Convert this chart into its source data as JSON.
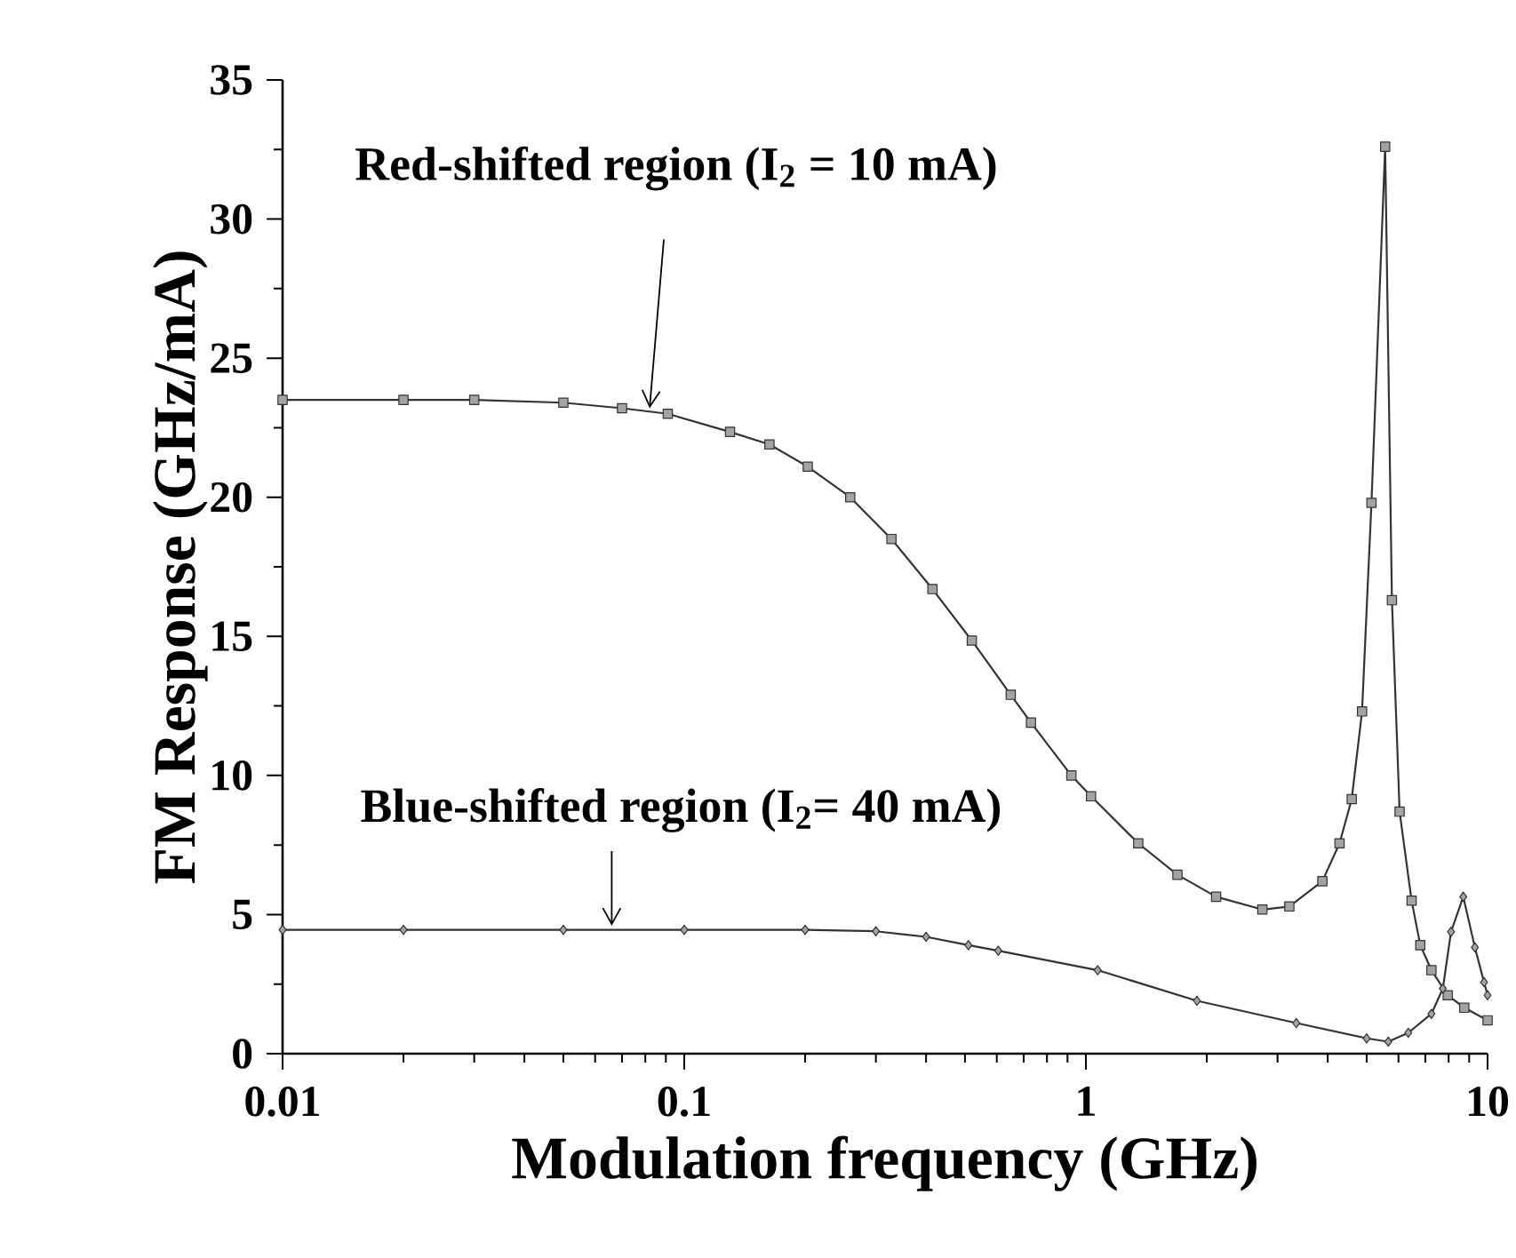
{
  "chart_data": {
    "type": "line",
    "xlabel": "Modulation frequency  (GHz)",
    "ylabel": "FM Response    (GHz/mA)",
    "log": "x",
    "xlim": [
      0.01,
      10
    ],
    "xticks": [
      0.01,
      0.1,
      1,
      10
    ],
    "ylim": [
      0,
      35
    ],
    "yticks": [
      0,
      5,
      10,
      15,
      20,
      25,
      30,
      35
    ],
    "grid": false,
    "line_style": "solid",
    "series": [
      {
        "color": "#333333",
        "marker": "square",
        "x": [
          0.01,
          0.02,
          0.03,
          0.05,
          0.07,
          0.091,
          0.13,
          0.163,
          0.203,
          0.259,
          0.328,
          0.415,
          0.52,
          0.65,
          0.73,
          0.92,
          1.03,
          1.35,
          1.69,
          2.11,
          2.75,
          3.21,
          3.88,
          4.28,
          4.59,
          4.87,
          5.14,
          5.56,
          5.78,
          6.04,
          6.47,
          6.8,
          7.25,
          7.96,
          8.75,
          10
        ],
        "values": [
          23.5,
          23.5,
          23.5,
          23.4,
          23.2,
          23.0,
          22.35,
          21.9,
          21.1,
          20.0,
          18.5,
          16.7,
          14.85,
          12.9,
          11.9,
          10.0,
          9.25,
          7.56,
          6.43,
          5.64,
          5.18,
          5.29,
          6.2,
          7.56,
          9.15,
          12.3,
          19.8,
          32.6,
          16.3,
          8.7,
          5.5,
          3.9,
          3.0,
          2.1,
          1.65,
          1.2
        ]
      },
      {
        "color": "#333333",
        "marker": "diamond",
        "x": [
          0.01,
          0.02,
          0.05,
          0.1,
          0.2,
          0.3,
          0.4,
          0.51,
          0.605,
          1.07,
          1.89,
          3.34,
          5.0,
          5.66,
          6.35,
          7.25,
          7.74,
          8.11,
          8.7,
          9.3,
          9.8,
          10
        ],
        "values": [
          4.45,
          4.45,
          4.45,
          4.45,
          4.45,
          4.4,
          4.2,
          3.9,
          3.7,
          3.0,
          1.9,
          1.1,
          0.55,
          0.43,
          0.75,
          1.43,
          2.34,
          4.38,
          5.64,
          3.82,
          2.57,
          2.1
        ]
      }
    ],
    "annotations": [
      {
        "text": "Red-shifted region (I$_{2}$ = 10 mA)",
        "x": 0.082,
        "y": 23.2
      },
      {
        "text": "Blue-shifted region  (I$_{2}$= 40 mA)",
        "x": 0.066,
        "y": 4.6
      }
    ]
  }
}
